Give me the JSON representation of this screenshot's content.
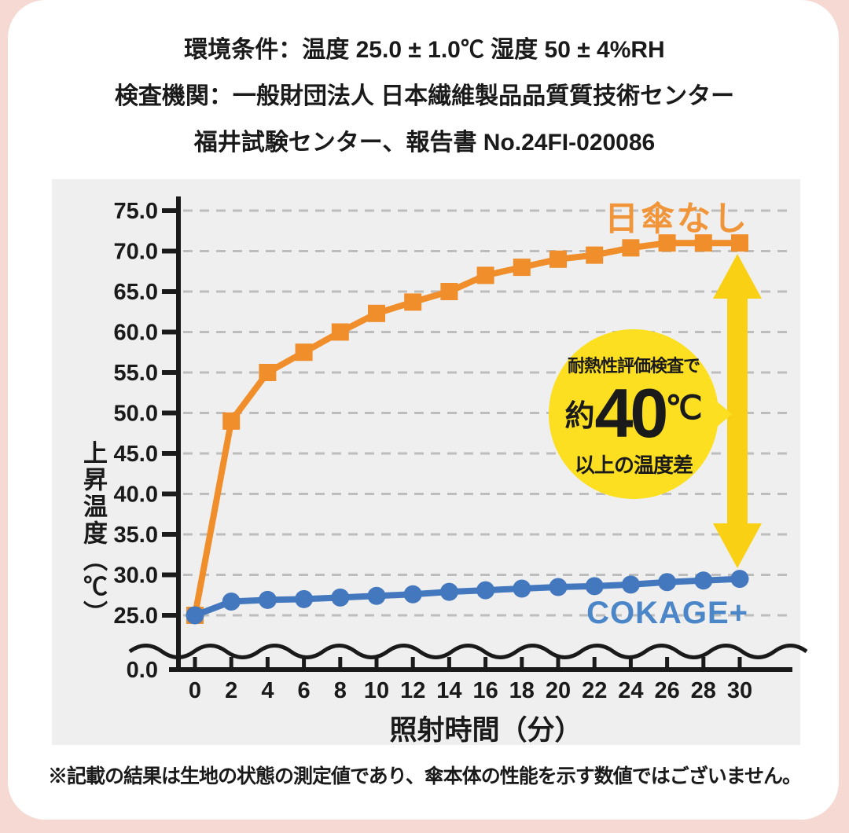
{
  "page": {
    "background": "#F6D9D3",
    "card": "#FFFFFF"
  },
  "header": {
    "line1": "環境条件：温度 25.0 ± 1.0℃ 湿度 50 ± 4%RH",
    "line2": "検査機関：一般財団法人 日本繊維製品品質質技術センター",
    "line3": "福井試験センター、報告書 No.24FI-020086"
  },
  "chart_data": {
    "type": "line",
    "xlabel": "照射時間（分）",
    "ylabel": "上昇温度（℃）",
    "x": [
      0,
      2,
      4,
      6,
      8,
      10,
      12,
      14,
      16,
      18,
      20,
      22,
      24,
      26,
      28,
      30
    ],
    "y_ticks": [
      25,
      30,
      35,
      40,
      45,
      50,
      55,
      60,
      65,
      70,
      75
    ],
    "y_break_label": "0.0",
    "ylim": [
      25,
      77
    ],
    "axis_break": "wavy break between 0.0 and 25.0 on y-axis",
    "grid": "horizontal dashed gridlines at each y tick",
    "legend_position": "labels next to lines",
    "series": [
      {
        "name": "日傘なし",
        "color": "#EF8E2A",
        "label_color": "#F0953A",
        "marker": "square",
        "values": [
          25.0,
          49.0,
          55.0,
          57.5,
          60.0,
          62.3,
          63.7,
          65.0,
          67.0,
          68.0,
          69.0,
          69.5,
          70.4,
          71.0,
          71.0,
          71.0
        ]
      },
      {
        "name": "COKAGE+",
        "color": "#4377BE",
        "label_color": "#4A86C8",
        "marker": "circle",
        "values": [
          25.0,
          26.7,
          26.9,
          27.0,
          27.2,
          27.4,
          27.6,
          27.9,
          28.1,
          28.3,
          28.5,
          28.6,
          28.8,
          29.1,
          29.3,
          29.5
        ]
      }
    ]
  },
  "annotation": {
    "badge": {
      "line1": "耐熱性評価検査で",
      "approx": "約",
      "value": "40",
      "unit": "℃",
      "line2": "以上の温度差",
      "bg": "#FBDF20",
      "text_color": "#1A1A1A"
    },
    "arrow_color": "#F9D013"
  },
  "footnote": "※記載の結果は生地の状態の測定値であり、傘本体の性能を示す数値ではございません。",
  "axis_color": "#1A1A1A",
  "panel_color": "#EFEFEF",
  "gridline_color": "#BDBDBD"
}
